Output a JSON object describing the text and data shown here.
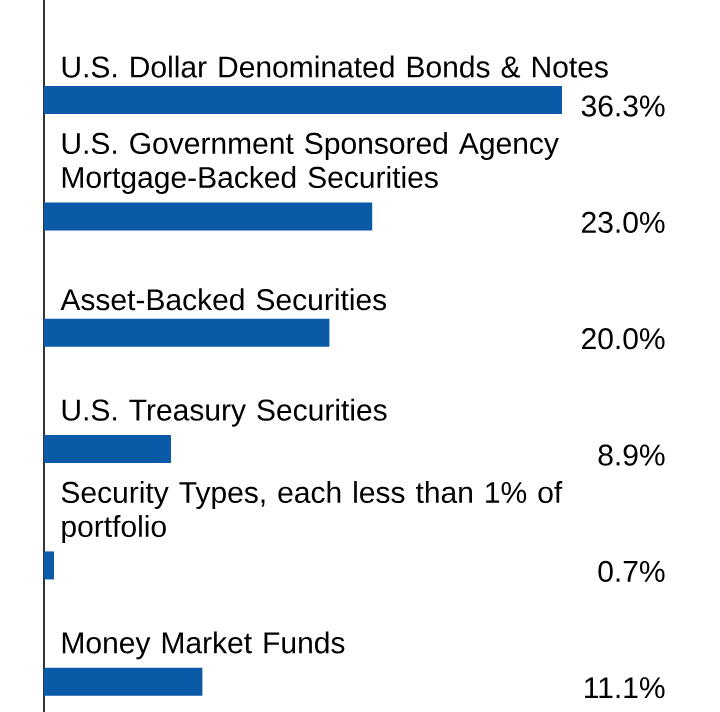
{
  "chart_data": {
    "type": "bar",
    "orientation": "horizontal",
    "categories": [
      "U.S. Dollar Denominated Bonds & Notes",
      "U.S. Government Sponsored Agency Mortgage-Backed Securities",
      "Asset-Backed Securities",
      "U.S. Treasury Securities",
      "Security Types, each less than 1% of portfolio",
      "Money Market Funds"
    ],
    "values": [
      36.3,
      23.0,
      20.0,
      8.9,
      0.7,
      11.1
    ],
    "value_labels": [
      "36.3%",
      "23.0%",
      "20.0%",
      "8.9%",
      "0.7%",
      "11.1%"
    ],
    "color": "#0a5aa8"
  }
}
